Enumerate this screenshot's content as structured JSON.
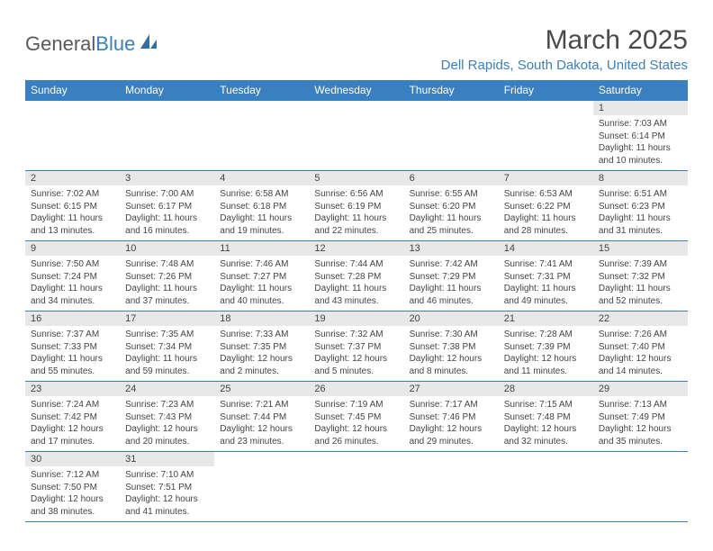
{
  "logo": {
    "text1": "General",
    "text2": "Blue"
  },
  "title": "March 2025",
  "location": "Dell Rapids, South Dakota, United States",
  "colors": {
    "header_bg": "#3a7fbf",
    "header_text": "#ffffff",
    "daynum_bg": "#e8e8e8",
    "border": "#3a7fbf",
    "body_text": "#444444",
    "location_text": "#3a7fbf",
    "title_text": "#4a4a4a"
  },
  "day_headers": [
    "Sunday",
    "Monday",
    "Tuesday",
    "Wednesday",
    "Thursday",
    "Friday",
    "Saturday"
  ],
  "weeks": [
    [
      {
        "n": "",
        "sr": "",
        "ss": "",
        "dl": ""
      },
      {
        "n": "",
        "sr": "",
        "ss": "",
        "dl": ""
      },
      {
        "n": "",
        "sr": "",
        "ss": "",
        "dl": ""
      },
      {
        "n": "",
        "sr": "",
        "ss": "",
        "dl": ""
      },
      {
        "n": "",
        "sr": "",
        "ss": "",
        "dl": ""
      },
      {
        "n": "",
        "sr": "",
        "ss": "",
        "dl": ""
      },
      {
        "n": "1",
        "sr": "Sunrise: 7:03 AM",
        "ss": "Sunset: 6:14 PM",
        "dl": "Daylight: 11 hours and 10 minutes."
      }
    ],
    [
      {
        "n": "2",
        "sr": "Sunrise: 7:02 AM",
        "ss": "Sunset: 6:15 PM",
        "dl": "Daylight: 11 hours and 13 minutes."
      },
      {
        "n": "3",
        "sr": "Sunrise: 7:00 AM",
        "ss": "Sunset: 6:17 PM",
        "dl": "Daylight: 11 hours and 16 minutes."
      },
      {
        "n": "4",
        "sr": "Sunrise: 6:58 AM",
        "ss": "Sunset: 6:18 PM",
        "dl": "Daylight: 11 hours and 19 minutes."
      },
      {
        "n": "5",
        "sr": "Sunrise: 6:56 AM",
        "ss": "Sunset: 6:19 PM",
        "dl": "Daylight: 11 hours and 22 minutes."
      },
      {
        "n": "6",
        "sr": "Sunrise: 6:55 AM",
        "ss": "Sunset: 6:20 PM",
        "dl": "Daylight: 11 hours and 25 minutes."
      },
      {
        "n": "7",
        "sr": "Sunrise: 6:53 AM",
        "ss": "Sunset: 6:22 PM",
        "dl": "Daylight: 11 hours and 28 minutes."
      },
      {
        "n": "8",
        "sr": "Sunrise: 6:51 AM",
        "ss": "Sunset: 6:23 PM",
        "dl": "Daylight: 11 hours and 31 minutes."
      }
    ],
    [
      {
        "n": "9",
        "sr": "Sunrise: 7:50 AM",
        "ss": "Sunset: 7:24 PM",
        "dl": "Daylight: 11 hours and 34 minutes."
      },
      {
        "n": "10",
        "sr": "Sunrise: 7:48 AM",
        "ss": "Sunset: 7:26 PM",
        "dl": "Daylight: 11 hours and 37 minutes."
      },
      {
        "n": "11",
        "sr": "Sunrise: 7:46 AM",
        "ss": "Sunset: 7:27 PM",
        "dl": "Daylight: 11 hours and 40 minutes."
      },
      {
        "n": "12",
        "sr": "Sunrise: 7:44 AM",
        "ss": "Sunset: 7:28 PM",
        "dl": "Daylight: 11 hours and 43 minutes."
      },
      {
        "n": "13",
        "sr": "Sunrise: 7:42 AM",
        "ss": "Sunset: 7:29 PM",
        "dl": "Daylight: 11 hours and 46 minutes."
      },
      {
        "n": "14",
        "sr": "Sunrise: 7:41 AM",
        "ss": "Sunset: 7:31 PM",
        "dl": "Daylight: 11 hours and 49 minutes."
      },
      {
        "n": "15",
        "sr": "Sunrise: 7:39 AM",
        "ss": "Sunset: 7:32 PM",
        "dl": "Daylight: 11 hours and 52 minutes."
      }
    ],
    [
      {
        "n": "16",
        "sr": "Sunrise: 7:37 AM",
        "ss": "Sunset: 7:33 PM",
        "dl": "Daylight: 11 hours and 55 minutes."
      },
      {
        "n": "17",
        "sr": "Sunrise: 7:35 AM",
        "ss": "Sunset: 7:34 PM",
        "dl": "Daylight: 11 hours and 59 minutes."
      },
      {
        "n": "18",
        "sr": "Sunrise: 7:33 AM",
        "ss": "Sunset: 7:35 PM",
        "dl": "Daylight: 12 hours and 2 minutes."
      },
      {
        "n": "19",
        "sr": "Sunrise: 7:32 AM",
        "ss": "Sunset: 7:37 PM",
        "dl": "Daylight: 12 hours and 5 minutes."
      },
      {
        "n": "20",
        "sr": "Sunrise: 7:30 AM",
        "ss": "Sunset: 7:38 PM",
        "dl": "Daylight: 12 hours and 8 minutes."
      },
      {
        "n": "21",
        "sr": "Sunrise: 7:28 AM",
        "ss": "Sunset: 7:39 PM",
        "dl": "Daylight: 12 hours and 11 minutes."
      },
      {
        "n": "22",
        "sr": "Sunrise: 7:26 AM",
        "ss": "Sunset: 7:40 PM",
        "dl": "Daylight: 12 hours and 14 minutes."
      }
    ],
    [
      {
        "n": "23",
        "sr": "Sunrise: 7:24 AM",
        "ss": "Sunset: 7:42 PM",
        "dl": "Daylight: 12 hours and 17 minutes."
      },
      {
        "n": "24",
        "sr": "Sunrise: 7:23 AM",
        "ss": "Sunset: 7:43 PM",
        "dl": "Daylight: 12 hours and 20 minutes."
      },
      {
        "n": "25",
        "sr": "Sunrise: 7:21 AM",
        "ss": "Sunset: 7:44 PM",
        "dl": "Daylight: 12 hours and 23 minutes."
      },
      {
        "n": "26",
        "sr": "Sunrise: 7:19 AM",
        "ss": "Sunset: 7:45 PM",
        "dl": "Daylight: 12 hours and 26 minutes."
      },
      {
        "n": "27",
        "sr": "Sunrise: 7:17 AM",
        "ss": "Sunset: 7:46 PM",
        "dl": "Daylight: 12 hours and 29 minutes."
      },
      {
        "n": "28",
        "sr": "Sunrise: 7:15 AM",
        "ss": "Sunset: 7:48 PM",
        "dl": "Daylight: 12 hours and 32 minutes."
      },
      {
        "n": "29",
        "sr": "Sunrise: 7:13 AM",
        "ss": "Sunset: 7:49 PM",
        "dl": "Daylight: 12 hours and 35 minutes."
      }
    ],
    [
      {
        "n": "30",
        "sr": "Sunrise: 7:12 AM",
        "ss": "Sunset: 7:50 PM",
        "dl": "Daylight: 12 hours and 38 minutes."
      },
      {
        "n": "31",
        "sr": "Sunrise: 7:10 AM",
        "ss": "Sunset: 7:51 PM",
        "dl": "Daylight: 12 hours and 41 minutes."
      },
      {
        "n": "",
        "sr": "",
        "ss": "",
        "dl": ""
      },
      {
        "n": "",
        "sr": "",
        "ss": "",
        "dl": ""
      },
      {
        "n": "",
        "sr": "",
        "ss": "",
        "dl": ""
      },
      {
        "n": "",
        "sr": "",
        "ss": "",
        "dl": ""
      },
      {
        "n": "",
        "sr": "",
        "ss": "",
        "dl": ""
      }
    ]
  ]
}
